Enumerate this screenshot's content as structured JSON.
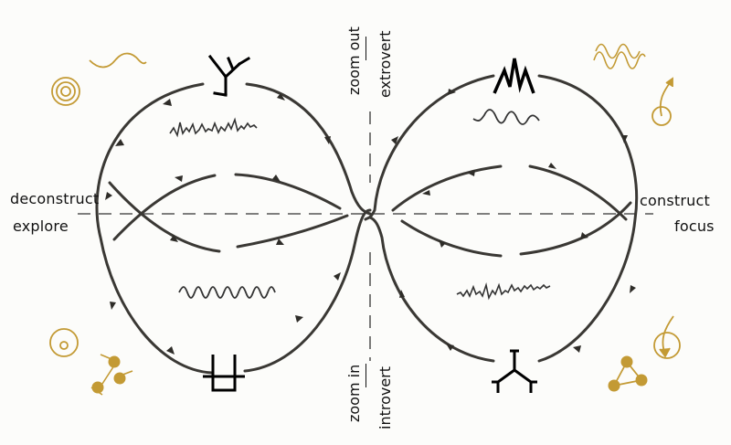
{
  "axes": {
    "left_top": "deconstruct",
    "left_bottom": "explore",
    "right_top": "construct",
    "right_bottom": "focus",
    "top_a": "zoom out",
    "top_b": "extrovert",
    "bottom_a": "zoom in",
    "bottom_b": "introvert"
  },
  "colors": {
    "ink": "#1a1a1a",
    "stroke": "#3a3834",
    "gold": "#c39a34"
  },
  "icons": {
    "top_left": "branching-y-glyph",
    "top_right": "zigzag-peaks-glyph",
    "bottom_left": "box-with-prongs-glyph",
    "bottom_right": "branching-tree-glyph",
    "corner_top_left": [
      "wave-icon",
      "concentric-circles-icon"
    ],
    "corner_top_right": [
      "double-wave-icon",
      "spiral-arrow-icon"
    ],
    "corner_bottom_left": [
      "dotted-circle-icon",
      "connected-dots-icon"
    ],
    "corner_bottom_right": [
      "looped-arrow-icon",
      "triangle-network-icon"
    ]
  }
}
